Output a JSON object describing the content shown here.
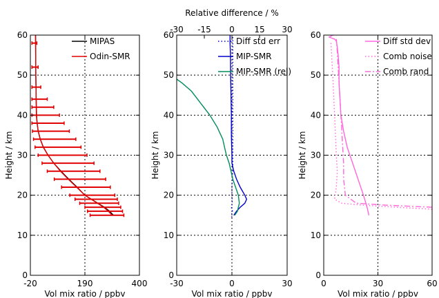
{
  "chart_data": [
    {
      "type": "line",
      "xlabel": "Vol mix ratio / ppbv",
      "ylabel": "Height / km",
      "xlim": [
        -20,
        400
      ],
      "ylim": [
        0,
        60
      ],
      "xticks": [
        -20,
        190,
        400
      ],
      "yticks": [
        0,
        10,
        20,
        30,
        40,
        50,
        60
      ],
      "grid": true,
      "legend_position": "top-right",
      "series": [
        {
          "name": "MIPAS",
          "color": "#000000",
          "dash": "solid",
          "x": [
            300,
            285,
            265,
            240,
            215,
            190,
            160,
            128,
            98,
            70,
            48,
            30,
            18,
            10,
            6,
            3,
            2,
            1,
            0
          ],
          "y": [
            15,
            16,
            17,
            18,
            19,
            20,
            22,
            24,
            26,
            28,
            30,
            32,
            34,
            36,
            38,
            40,
            45,
            50,
            60
          ]
        },
        {
          "name": "Odin-SMR",
          "color": "#e00000",
          "dash": "solid",
          "error_bars": true,
          "x": [
            295,
            280,
            262,
            238,
            214,
            190,
            158,
            126,
            96,
            70,
            48,
            30,
            18,
            10,
            6,
            4,
            2,
            1,
            0
          ],
          "y": [
            15,
            16,
            17,
            18,
            19,
            20,
            22,
            24,
            26,
            28,
            30,
            32,
            34,
            36,
            38,
            40,
            45,
            50,
            60
          ],
          "err_x": [
            [
              210,
              340
            ],
            [
              200,
              335
            ],
            [
              190,
              328
            ],
            [
              170,
              320
            ],
            [
              152,
              315
            ],
            [
              132,
              305
            ],
            [
              100,
              288
            ],
            [
              72,
              270
            ],
            [
              45,
              248
            ],
            [
              25,
              225
            ],
            [
              10,
              198
            ],
            [
              -2,
              175
            ],
            [
              -8,
              155
            ],
            [
              -12,
              130
            ],
            [
              -14,
              110
            ],
            [
              -14,
              92
            ],
            [
              -14,
              70
            ],
            [
              -14,
              45
            ],
            [
              -14,
              20
            ],
            [
              -14,
              10
            ],
            [
              -14,
              5
            ]
          ],
          "err_y": [
            15,
            16,
            17,
            18,
            19,
            20,
            22,
            24,
            26,
            28,
            30,
            32,
            34,
            36,
            38,
            40,
            42,
            44,
            47,
            52,
            58
          ]
        }
      ]
    },
    {
      "type": "line",
      "xlabel": "Vol mix ratio / ppbv",
      "ylabel": "Height / km",
      "x2label": "Relative difference / %",
      "xlim": [
        -30,
        30
      ],
      "x2lim": [
        -30,
        30
      ],
      "ylim": [
        0,
        60
      ],
      "xticks": [
        -30,
        0,
        30
      ],
      "x2ticks": [
        -30,
        -15,
        0,
        15,
        30
      ],
      "yticks": [
        0,
        10,
        20,
        30,
        40,
        50,
        60
      ],
      "grid": true,
      "legend_position": "top-right",
      "series": [
        {
          "name": "Diff std err",
          "color": "#0000cc",
          "dash": "dotted",
          "x": [
            0.0,
            -0.3,
            0.3,
            -0.3,
            0.2,
            0.0,
            0.0,
            0.3,
            0.5,
            0.5,
            0.5,
            0.5,
            0.5,
            0.5,
            0.5,
            0.5
          ],
          "y": [
            14.5,
            15,
            16,
            17,
            18,
            20,
            22,
            25,
            27,
            30,
            35,
            40,
            45,
            50,
            55,
            60
          ]
        },
        {
          "name": "MIP-SMR",
          "color": "#0000cc",
          "dash": "solid",
          "x": [
            1.0,
            2.5,
            4.5,
            7.0,
            8.0,
            7.0,
            4.5,
            2.5,
            1.0,
            0.0,
            0.0,
            -0.3,
            -0.3,
            -0.5,
            -0.7,
            -0.8,
            -1.0,
            -1.0
          ],
          "y": [
            15,
            16,
            17,
            18,
            19,
            20,
            22,
            24,
            26,
            28,
            30,
            35,
            40,
            45,
            50,
            55,
            58,
            60
          ]
        },
        {
          "name": "MIP-SMR (rel)",
          "color": "#008b5a",
          "dash": "solid",
          "x": [
            1.5,
            3.0,
            4.0,
            3.5,
            2.0,
            0.5,
            -0.5,
            -1.5,
            -3.0,
            -4.0,
            -5.0,
            -8.0,
            -12.0,
            -17.0,
            -22.0,
            -27.0,
            -30.0
          ],
          "y": [
            15,
            16,
            18,
            20,
            22,
            24,
            26,
            28,
            30,
            32,
            34,
            37,
            40,
            43,
            46,
            48,
            49
          ]
        }
      ]
    },
    {
      "type": "line",
      "xlabel": "Vol mix ratio / ppbv",
      "ylabel": "Height / km",
      "xlim": [
        0,
        60
      ],
      "ylim": [
        0,
        60
      ],
      "xticks": [
        0,
        30,
        60
      ],
      "yticks": [
        0,
        10,
        20,
        30,
        40,
        50,
        60
      ],
      "grid": true,
      "legend_position": "top-right",
      "series": [
        {
          "name": "Diff std dev",
          "color": "#ff66dd",
          "dash": "solid",
          "x": [
            25,
            24,
            22,
            19,
            16,
            13,
            11,
            9.5,
            9,
            8.5,
            8.5,
            8,
            7.5,
            7,
            6,
            3,
            5,
            20
          ],
          "y": [
            15,
            17,
            20,
            24,
            28,
            32,
            36,
            40,
            44,
            48,
            52,
            55,
            57,
            58.5,
            59,
            59.5,
            60,
            60.5
          ]
        },
        {
          "name": "Comb noise",
          "color": "#ff66dd",
          "dash": "dotted",
          "x": [
            60,
            40,
            22,
            10,
            6,
            7,
            7.5,
            7,
            6.5,
            6,
            5.5,
            5,
            4
          ],
          "y": [
            16.5,
            17,
            17.5,
            18,
            19,
            22,
            26,
            30,
            35,
            40,
            45,
            50,
            58
          ]
        },
        {
          "name": "Comb rand",
          "color": "#ff66dd",
          "dash": "dashdot",
          "x": [
            60,
            35,
            18,
            12,
            11,
            11,
            10.5,
            10,
            9.5,
            9,
            8.5,
            8,
            7.5,
            7
          ],
          "y": [
            17,
            17.5,
            18,
            20,
            24,
            28,
            32,
            36,
            40,
            44,
            48,
            52,
            56,
            59
          ]
        }
      ]
    }
  ]
}
